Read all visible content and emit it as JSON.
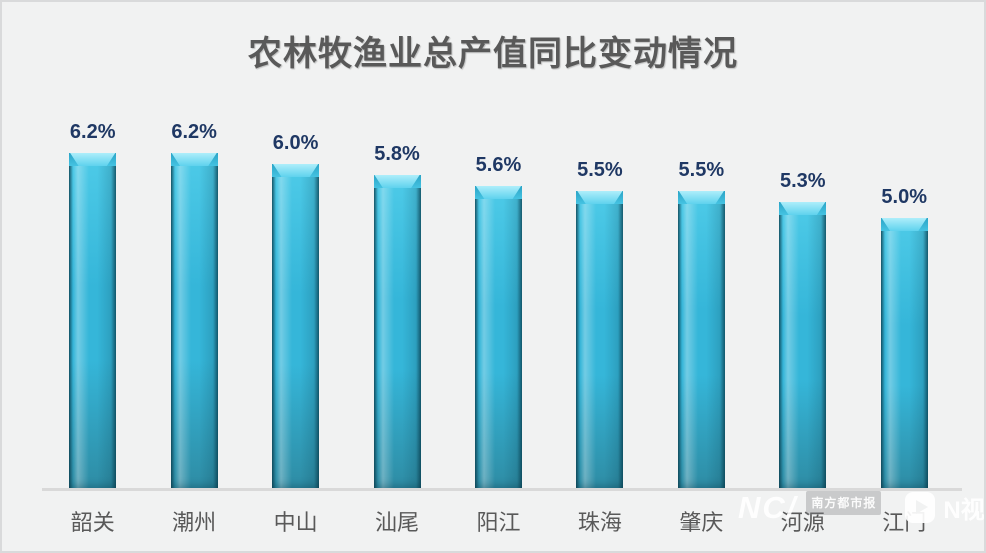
{
  "page": {
    "background": "#F1F2F2",
    "border_color": "#D9DADB"
  },
  "chart_data": {
    "type": "bar",
    "title": "农林牧渔业总产值同比变动情况",
    "categories": [
      "韶关",
      "潮州",
      "中山",
      "汕尾",
      "阳江",
      "珠海",
      "肇庆",
      "河源",
      "江门"
    ],
    "values": [
      6.2,
      6.2,
      6.0,
      5.8,
      5.6,
      5.5,
      5.5,
      5.3,
      5.0
    ],
    "value_labels": [
      "6.2%",
      "6.2%",
      "6.0%",
      "5.8%",
      "5.6%",
      "5.5%",
      "5.5%",
      "5.3%",
      "5.0%"
    ],
    "xlabel": "",
    "ylabel": "",
    "ylim": [
      0,
      7.2
    ],
    "grid": false,
    "legend": false,
    "bar_color": "#35B6D9",
    "bar_color_light": "#4ECBE8",
    "bar_color_dark": "#2E8CA4",
    "bar_bevel_highlight": "#AEEEFB",
    "value_label_color": "#1F3864",
    "category_label_color": "#595959",
    "title_color": "#595959",
    "axis_line_color": "#D9D9D9"
  },
  "watermark": {
    "nandu_logo": "NC/",
    "nandu_badge": "南方都市报",
    "nvideo_label": "N视频"
  }
}
